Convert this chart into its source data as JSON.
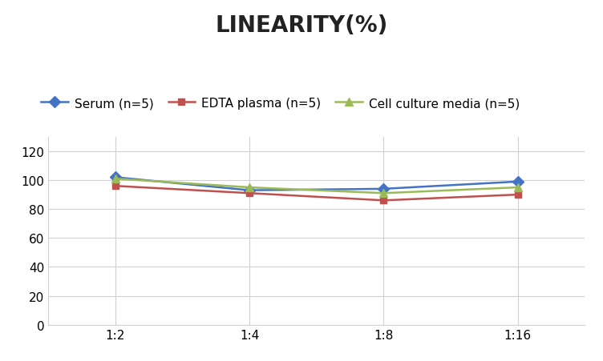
{
  "title": "LINEARITY(%)",
  "x_labels": [
    "1:2",
    "1:4",
    "1:8",
    "1:16"
  ],
  "x_positions": [
    0,
    1,
    2,
    3
  ],
  "series": [
    {
      "label": "Serum (n=5)",
      "values": [
        102,
        93,
        94,
        99
      ],
      "color": "#4472C4",
      "marker": "D",
      "markersize": 7,
      "linewidth": 1.8
    },
    {
      "label": "EDTA plasma (n=5)",
      "values": [
        96,
        91,
        86,
        90
      ],
      "color": "#C0504D",
      "marker": "s",
      "markersize": 6,
      "linewidth": 1.8
    },
    {
      "label": "Cell culture media (n=5)",
      "values": [
        101,
        95,
        91,
        95
      ],
      "color": "#9BBB59",
      "marker": "^",
      "markersize": 7,
      "linewidth": 1.8
    }
  ],
  "ylim": [
    0,
    130
  ],
  "yticks": [
    0,
    20,
    40,
    60,
    80,
    100,
    120
  ],
  "background_color": "#FFFFFF",
  "grid_color": "#D0D0D0",
  "title_fontsize": 20,
  "legend_fontsize": 11,
  "tick_fontsize": 11
}
